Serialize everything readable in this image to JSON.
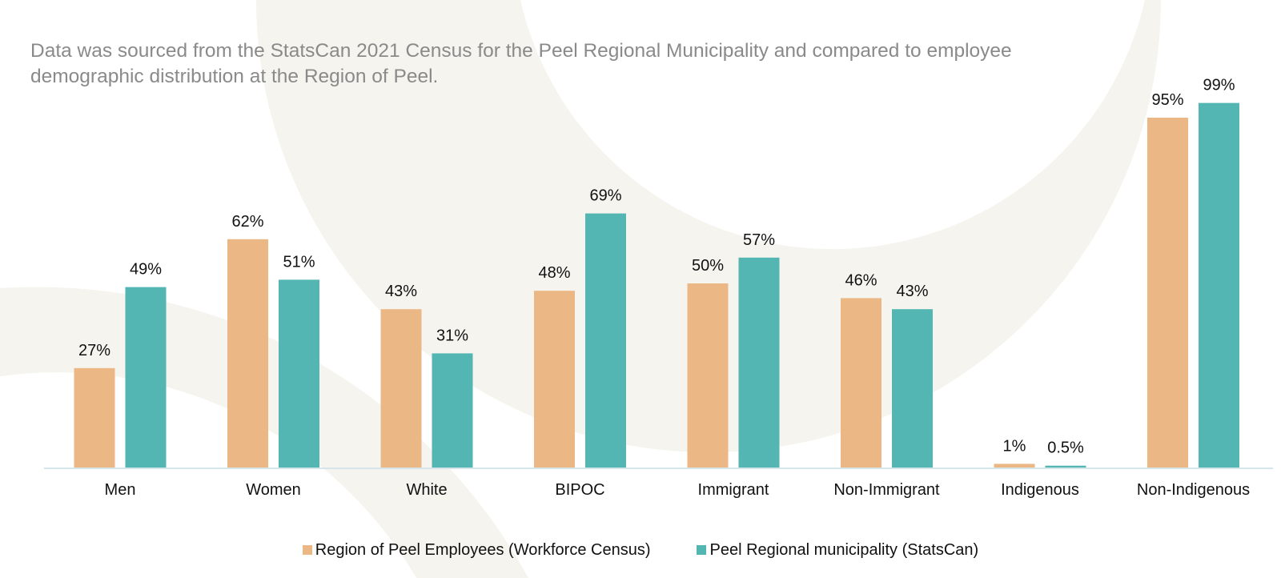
{
  "description": "Data was sourced from the StatsCan 2021 Census for the Peel Regional Municipality and compared to employee demographic distribution at the Region of Peel.",
  "colors": {
    "employees": "#EBB785",
    "municipality": "#53B6B2",
    "background_shape": "#F5F4EF",
    "baseline": "#D6E4EC"
  },
  "chart_data": {
    "type": "bar",
    "categories": [
      "Men",
      "Women",
      "White",
      "BIPOC",
      "Immigrant",
      "Non-Immigrant",
      "Indigenous",
      "Non-Indigenous"
    ],
    "series": [
      {
        "name": "Region of Peel Employees (Workforce Census)",
        "values": [
          27,
          62,
          43,
          48,
          50,
          46,
          1,
          95
        ],
        "labels": [
          "27%",
          "62%",
          "43%",
          "48%",
          "50%",
          "46%",
          "1%",
          "95%"
        ]
      },
      {
        "name": "Peel Regional municipality (StatsCan)",
        "values": [
          49,
          51,
          31,
          69,
          57,
          43,
          0.5,
          99
        ],
        "labels": [
          "49%",
          "51%",
          "31%",
          "69%",
          "57%",
          "43%",
          "0.5%",
          "99%"
        ]
      }
    ],
    "ylim": [
      0,
      100
    ],
    "grid": false,
    "legend": "bottom"
  }
}
